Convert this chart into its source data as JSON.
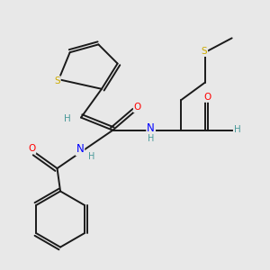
{
  "background_color": "#e8e8e8",
  "bond_color": "#1a1a1a",
  "atom_colors": {
    "S": "#ccaa00",
    "N": "#0000ff",
    "O": "#ff0000",
    "H": "#4a9a9a",
    "C": "#1a1a1a"
  },
  "bond_lw": 1.4,
  "font_size": 7.5
}
